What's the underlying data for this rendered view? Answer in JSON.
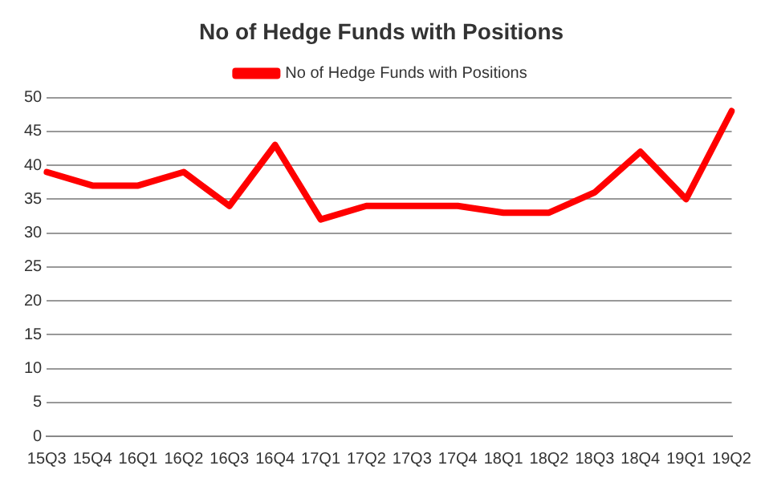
{
  "chart_data": {
    "type": "line",
    "title": "No of Hedge Funds with Positions",
    "categories": [
      "15Q3",
      "15Q4",
      "16Q1",
      "16Q2",
      "16Q3",
      "16Q4",
      "17Q1",
      "17Q2",
      "17Q3",
      "17Q4",
      "18Q1",
      "18Q2",
      "18Q3",
      "18Q4",
      "19Q1",
      "19Q2"
    ],
    "series": [
      {
        "name": "No of Hedge Funds with Positions",
        "color": "#ff0000",
        "values": [
          39,
          37,
          37,
          39,
          34,
          43,
          32,
          34,
          34,
          34,
          33,
          33,
          36,
          42,
          35,
          48
        ]
      }
    ],
    "ylim": [
      0,
      50
    ],
    "yticks": [
      0,
      5,
      10,
      15,
      20,
      25,
      30,
      35,
      40,
      45,
      50
    ],
    "grid": "y",
    "legend": "top",
    "marker": "none",
    "line_style": "solid"
  }
}
